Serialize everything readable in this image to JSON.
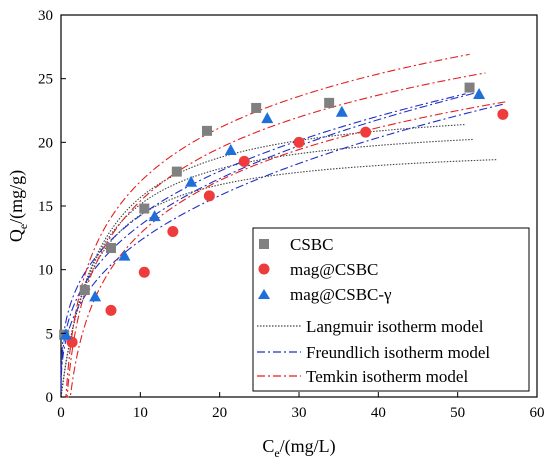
{
  "chart_data": {
    "type": "scatter",
    "xlabel": "C",
    "xlabel_sub": "e",
    "xlabel_unit": "/(mg/L)",
    "ylabel": "Q",
    "ylabel_sub": "e",
    "ylabel_unit": "/(mg/g)",
    "xlim": [
      0,
      60
    ],
    "ylim": [
      0,
      30
    ],
    "xticks": [
      0,
      10,
      20,
      30,
      40,
      50,
      60
    ],
    "yticks": [
      0,
      5,
      10,
      15,
      20,
      25,
      30
    ],
    "legend_position": "bottom-right",
    "grid": false,
    "series": [
      {
        "name": "CSBC",
        "marker": "square",
        "color": "#808080",
        "x": [
          0.4,
          3.0,
          6.3,
          10.5,
          14.6,
          18.4,
          24.6,
          33.8,
          51.5
        ],
        "y": [
          4.9,
          8.4,
          11.7,
          14.8,
          17.7,
          20.9,
          22.7,
          23.1,
          24.3
        ]
      },
      {
        "name": "mag@CSBC",
        "marker": "circle",
        "color": "#ee3b3b",
        "x": [
          1.4,
          6.3,
          10.5,
          14.1,
          18.7,
          23.1,
          30.0,
          38.4,
          55.7
        ],
        "y": [
          4.3,
          6.8,
          9.8,
          13.0,
          15.8,
          18.5,
          20.0,
          20.8,
          22.2
        ]
      },
      {
        "name": "mag@CSBC-γ",
        "marker": "triangle",
        "color": "#1e6fd9",
        "x": [
          0.6,
          4.3,
          8.0,
          11.8,
          16.4,
          21.4,
          26.0,
          35.4,
          52.7
        ],
        "y": [
          4.9,
          7.9,
          11.1,
          14.2,
          16.9,
          19.4,
          21.9,
          22.4,
          23.8
        ]
      }
    ],
    "fit_models": [
      {
        "name": "Langmuir isotherm model",
        "color": "#444444",
        "dash": "1.5,1.5",
        "curves": [
          {
            "qm": 20.0,
            "K": 0.25,
            "xmax": 55.0
          },
          {
            "qm": 22.0,
            "K": 0.22,
            "xmax": 52.0
          },
          {
            "qm": 23.5,
            "K": 0.2,
            "xmax": 51.0
          }
        ]
      },
      {
        "name": "Freundlich isotherm model",
        "color": "#1f2fc8",
        "dash": "8,3,2,3",
        "curves": [
          {
            "K": 5.3,
            "n": 0.365,
            "xmax": 56.0
          },
          {
            "K": 6.1,
            "n": 0.345,
            "xmax": 53.0
          },
          {
            "K": 6.9,
            "n": 0.315,
            "xmax": 51.0
          }
        ]
      },
      {
        "name": "Temkin isotherm model",
        "color": "#e32020",
        "dash": "8,3,2,3",
        "curves": [
          {
            "A": 0.85,
            "B": 6.0,
            "xmax": 56.0
          },
          {
            "A": 1.3,
            "B": 6.0,
            "xmax": 53.5
          },
          {
            "A": 1.6,
            "B": 6.1,
            "xmax": 51.5
          }
        ]
      }
    ]
  }
}
